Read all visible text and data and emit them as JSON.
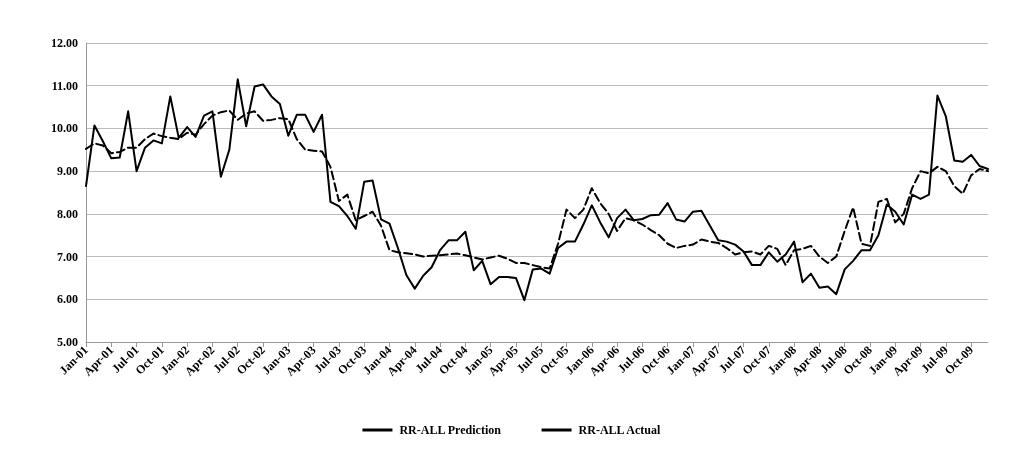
{
  "chart_data": {
    "type": "line",
    "categories": [
      "Jan-01",
      null,
      null,
      "Apr-01",
      null,
      null,
      "Jul-01",
      null,
      null,
      "Oct-01",
      null,
      null,
      "Jan-02",
      null,
      null,
      "Apr-02",
      null,
      null,
      "Jul-02",
      null,
      null,
      "Oct-02",
      null,
      null,
      "Jan-03",
      null,
      null,
      "Apr-03",
      null,
      null,
      "Jul-03",
      null,
      null,
      "Oct-03",
      null,
      null,
      "Jan-04",
      null,
      null,
      "Apr-04",
      null,
      null,
      "Jul-04",
      null,
      null,
      "Oct-04",
      null,
      null,
      "Jan-05",
      null,
      null,
      "Apr-05",
      null,
      null,
      "Jul-05",
      null,
      null,
      "Oct-05",
      null,
      null,
      "Jan-06",
      null,
      null,
      "Apr-06",
      null,
      null,
      "Jul-06",
      null,
      null,
      "Oct-06",
      null,
      null,
      "Jan-07",
      null,
      null,
      "Apr-07",
      null,
      null,
      "Jul-07",
      null,
      null,
      "Oct-07",
      null,
      null,
      "Jan-08",
      null,
      null,
      "Apr-08",
      null,
      null,
      "Jul-08",
      null,
      null,
      "Oct-08",
      null,
      null,
      "Jan-09",
      null,
      null,
      "Apr-09",
      null,
      null,
      "Jul-09",
      null,
      null,
      "Oct-09",
      null,
      null
    ],
    "series": [
      {
        "name": "RR-ALL Prediction",
        "color": "#000000",
        "line_style": "dashed",
        "values": [
          9.52,
          9.65,
          9.6,
          9.42,
          9.45,
          9.55,
          9.55,
          9.75,
          9.88,
          9.82,
          9.78,
          9.75,
          9.9,
          9.85,
          10.1,
          10.3,
          10.38,
          10.42,
          10.2,
          10.35,
          10.4,
          10.18,
          10.2,
          10.24,
          10.22,
          9.75,
          9.5,
          9.48,
          9.46,
          9.1,
          8.3,
          8.45,
          7.85,
          7.95,
          8.05,
          7.72,
          7.15,
          7.1,
          7.08,
          7.05,
          7.0,
          7.02,
          7.03,
          7.05,
          7.07,
          7.03,
          6.98,
          6.93,
          6.98,
          7.02,
          6.95,
          6.85,
          6.85,
          6.8,
          6.75,
          6.72,
          7.3,
          8.1,
          7.9,
          8.1,
          8.6,
          8.25,
          8.0,
          7.6,
          7.9,
          7.85,
          7.75,
          7.62,
          7.5,
          7.3,
          7.2,
          7.25,
          7.28,
          7.4,
          7.35,
          7.32,
          7.2,
          7.05,
          7.1,
          7.12,
          7.05,
          7.25,
          7.18,
          6.8,
          7.15,
          7.18,
          7.25,
          7.0,
          6.85,
          7.0,
          7.6,
          8.15,
          7.3,
          7.25,
          8.28,
          8.35,
          7.8,
          8.0,
          8.6,
          9.0,
          8.95,
          9.1,
          9.0,
          8.65,
          8.47,
          8.9,
          9.05,
          9.0
        ]
      },
      {
        "name": "RR-ALL Actual",
        "color": "#000000",
        "line_style": "solid",
        "values": [
          8.65,
          10.07,
          9.7,
          9.3,
          9.32,
          10.4,
          9.0,
          9.55,
          9.72,
          9.65,
          10.75,
          9.78,
          10.03,
          9.8,
          10.3,
          10.4,
          8.87,
          9.5,
          11.15,
          10.05,
          10.98,
          11.03,
          10.75,
          10.57,
          9.83,
          10.32,
          10.32,
          9.92,
          10.32,
          8.28,
          8.18,
          7.95,
          7.65,
          8.75,
          8.78,
          7.87,
          7.77,
          7.2,
          6.57,
          6.25,
          6.55,
          6.75,
          7.15,
          7.38,
          7.38,
          7.58,
          6.68,
          6.9,
          6.35,
          6.52,
          6.52,
          6.5,
          5.98,
          6.7,
          6.72,
          6.6,
          7.2,
          7.35,
          7.35,
          7.75,
          8.2,
          7.8,
          7.45,
          7.9,
          8.1,
          7.85,
          7.88,
          7.97,
          7.98,
          8.25,
          7.87,
          7.82,
          8.05,
          8.07,
          7.73,
          7.38,
          7.35,
          7.28,
          7.12,
          6.8,
          6.8,
          7.1,
          6.88,
          7.05,
          7.35,
          6.4,
          6.6,
          6.27,
          6.3,
          6.12,
          6.7,
          6.9,
          7.15,
          7.15,
          7.5,
          8.22,
          8.05,
          7.75,
          8.45,
          8.35,
          8.45,
          10.77,
          10.28,
          9.25,
          9.22,
          9.38,
          9.12,
          9.05
        ]
      }
    ],
    "ylim": [
      5,
      12
    ],
    "yticks": [
      {
        "value": 5,
        "label": "5.00"
      },
      {
        "value": 6,
        "label": "6.00"
      },
      {
        "value": 7,
        "label": "7.00"
      },
      {
        "value": 8,
        "label": "8.00"
      },
      {
        "value": 9,
        "label": "9.00"
      },
      {
        "value": 10,
        "label": "10.00"
      },
      {
        "value": 11,
        "label": "11.00"
      },
      {
        "value": 12,
        "label": "12.00"
      }
    ],
    "grid": "y",
    "legend": "bottom",
    "marker": "none"
  }
}
